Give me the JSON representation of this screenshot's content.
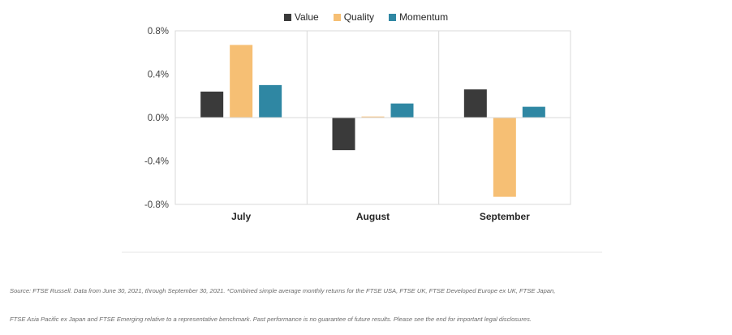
{
  "chart_data": {
    "type": "bar",
    "categories": [
      "July",
      "August",
      "September"
    ],
    "series": [
      {
        "name": "Value",
        "color": "#3a3a3a",
        "values": [
          0.24,
          -0.3,
          0.26
        ]
      },
      {
        "name": "Quality",
        "color": "#f6bf74",
        "values": [
          0.67,
          0.01,
          -0.73
        ]
      },
      {
        "name": "Momentum",
        "color": "#2f87a3",
        "values": [
          0.3,
          0.13,
          0.1
        ]
      }
    ],
    "yticks": [
      "0.8%",
      "0.4%",
      "0.0%",
      "-0.4%",
      "-0.8%"
    ],
    "ylim": [
      -0.8,
      0.8
    ],
    "grid": true,
    "legend_position": "top"
  },
  "source": {
    "line1": "Source: FTSE Russell. Data from June 30, 2021, through September 30, 2021. *Combined simple average monthly returns for the FTSE USA, FTSE UK, FTSE Developed Europe ex UK, FTSE Japan,",
    "line2": "FTSE Asia Pacific ex Japan and FTSE Emerging relative to a representative benchmark. Past performance is no guarantee of future results. Please see the end for important legal disclosures."
  }
}
